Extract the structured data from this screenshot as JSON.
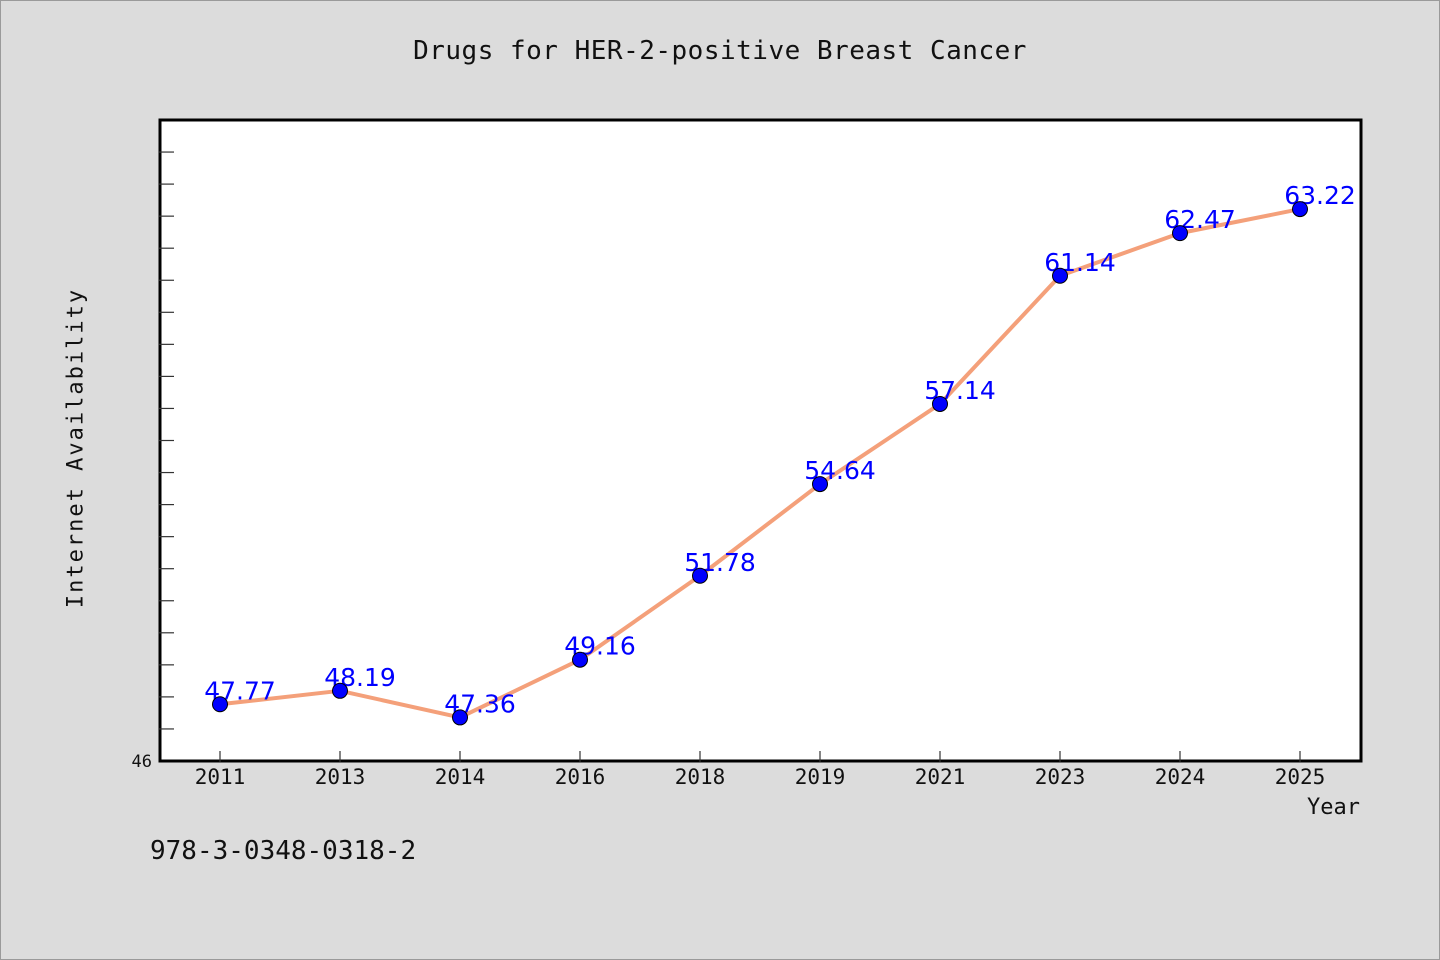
{
  "chart_data": {
    "type": "line",
    "title": "Drugs for HER-2-positive Breast Cancer",
    "xlabel": "Year",
    "ylabel": "Internet Availability",
    "categories": [
      "2011",
      "2013",
      "2014",
      "2016",
      "2018",
      "2019",
      "2021",
      "2023",
      "2024",
      "2025"
    ],
    "values": [
      47.77,
      48.19,
      47.36,
      49.16,
      51.78,
      54.64,
      57.14,
      61.14,
      62.47,
      63.22
    ],
    "data_labels": [
      "47.77",
      "48.19",
      "47.36",
      "49.16",
      "51.78",
      "54.64",
      "57.14",
      "61.14",
      "62.47",
      "63.22"
    ],
    "ylim": [
      46,
      66
    ],
    "y_tick_labels": [
      "46"
    ],
    "grid": false,
    "legend": "none",
    "colors": {
      "line": "#f4a07a",
      "marker": "#0000ff",
      "data_label": "#0000ff",
      "plot_background": "#ffffff",
      "page_background": "#dcdcdc"
    }
  },
  "footer": {
    "isbn": "978-3-0348-0318-2"
  }
}
